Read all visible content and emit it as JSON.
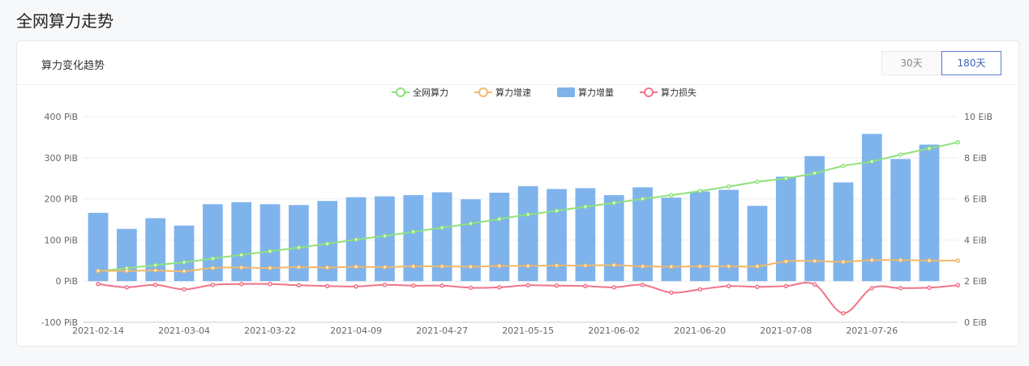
{
  "page": {
    "title": "全网算力走势"
  },
  "card": {
    "title": "算力变化趋势"
  },
  "range_tabs": [
    {
      "label": "30天",
      "active": false
    },
    {
      "label": "180天",
      "active": true
    }
  ],
  "colors": {
    "total": "#8fe27a",
    "growth_rate": "#f0b86a",
    "increase": "#7fb3ec",
    "loss": "#f0748a"
  },
  "chart_data": {
    "type": "bar",
    "x_ticks": [
      "2021-02-14",
      "2021-03-04",
      "2021-03-22",
      "2021-04-09",
      "2021-04-27",
      "2021-05-15",
      "2021-06-02",
      "2021-06-20",
      "2021-07-08",
      "2021-07-26"
    ],
    "left_axis": {
      "ticks": [
        "400 PiB",
        "300 PiB",
        "200 PiB",
        "100 PiB",
        "0 PiB",
        "-100 PiB"
      ],
      "ylim": [
        -100,
        400
      ]
    },
    "right_axis": {
      "ticks": [
        "10 EiB",
        "8 EiB",
        "6 EiB",
        "4 EiB",
        "2 EiB",
        "0 EiB"
      ],
      "ylim": [
        0,
        10
      ]
    },
    "grid": true,
    "legend_position": "top-center",
    "series": [
      {
        "name": "全网算力",
        "type": "line",
        "axis": "right",
        "color_key": "total",
        "values": [
          2.48,
          2.63,
          2.78,
          2.92,
          3.1,
          3.28,
          3.45,
          3.63,
          3.82,
          4.02,
          4.2,
          4.4,
          4.6,
          4.8,
          5.02,
          5.24,
          5.42,
          5.62,
          5.8,
          6.0,
          6.18,
          6.38,
          6.6,
          6.83,
          7.0,
          7.25,
          7.6,
          7.82,
          8.15,
          8.45,
          8.75
        ]
      },
      {
        "name": "算力增速",
        "type": "line",
        "axis": "left",
        "color_key": "growth_rate",
        "values": [
          25,
          25,
          26,
          24,
          32,
          33,
          32,
          34,
          33,
          35,
          34,
          36,
          36,
          35,
          37,
          37,
          38,
          38,
          39,
          36,
          35,
          36,
          36,
          36,
          48,
          49,
          47,
          51,
          51,
          50,
          50
        ]
      },
      {
        "name": "算力增量",
        "type": "bar",
        "axis": "left",
        "color_key": "increase",
        "values": [
          166,
          127,
          153,
          135,
          187,
          192,
          187,
          185,
          195,
          204,
          206,
          209,
          216,
          199,
          215,
          231,
          224,
          226,
          209,
          228,
          203,
          218,
          222,
          183,
          254,
          304,
          240,
          358,
          297,
          332,
          0
        ]
      },
      {
        "name": "算力损失",
        "type": "line",
        "axis": "left",
        "color_key": "loss",
        "values": [
          -7,
          -15,
          -9,
          -20,
          -9,
          -7,
          -7,
          -10,
          -12,
          -13,
          -9,
          -11,
          -11,
          -16,
          -15,
          -10,
          -11,
          -12,
          -15,
          -9,
          -28,
          -20,
          -12,
          -14,
          -12,
          -8,
          -78,
          -17,
          -17,
          -16,
          -10
        ]
      }
    ],
    "bar_count": 30
  }
}
